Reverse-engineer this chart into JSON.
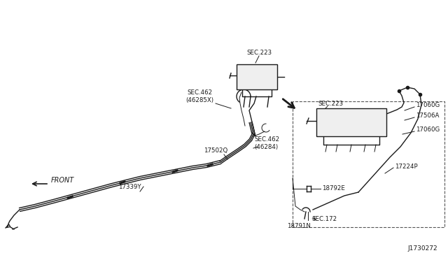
{
  "bg_color": "#ffffff",
  "line_color": "#1a1a1a",
  "text_color": "#1a1a1a",
  "labels": {
    "SEC_223_top": "SEC.223",
    "SEC_462_top": "SEC.462\n(46285X)",
    "17502Q": "17502Q",
    "SEC_462_mid": "SEC.462\n(46284)",
    "17339Y": "17339Y",
    "FRONT": "FRONT",
    "SEC_223_right": "SEC.223",
    "17060G_top": "17060G",
    "17506A": "17506A",
    "17060G_bot": "17060G",
    "18792E": "18792E",
    "17224P": "17224P",
    "SEC_172": "SEC.172",
    "18791N": "18791N",
    "diagram_id": "J1730272"
  }
}
